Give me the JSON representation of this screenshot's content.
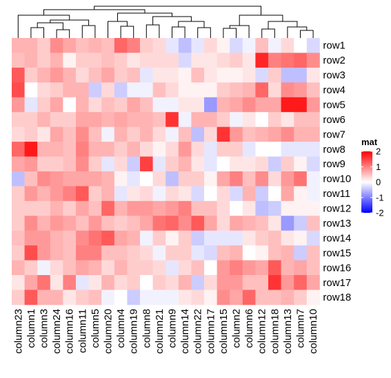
{
  "chart_data": {
    "type": "heatmap",
    "title": "",
    "rows": [
      "row1",
      "row2",
      "row3",
      "row4",
      "row5",
      "row6",
      "row7",
      "row8",
      "row9",
      "row10",
      "row11",
      "row12",
      "row13",
      "row14",
      "row15",
      "row16",
      "row17",
      "row18"
    ],
    "columns": [
      "column23",
      "column1",
      "column3",
      "column24",
      "column16",
      "column11",
      "column5",
      "column20",
      "column4",
      "column19",
      "column8",
      "column21",
      "column9",
      "column14",
      "column22",
      "column17",
      "column15",
      "column2",
      "column6",
      "column12",
      "column18",
      "column13",
      "column7",
      "column10"
    ],
    "values": [
      [
        0.6,
        0.6,
        0.4,
        0.9,
        0.7,
        0.5,
        0.6,
        0.5,
        1.2,
        1.0,
        0.4,
        0.3,
        -0.2,
        -0.5,
        -0.2,
        0.3,
        0.1,
        -0.3,
        -0.1,
        0.5,
        -0.1,
        0.3,
        0.0,
        -0.3
      ],
      [
        0.5,
        0.6,
        0.4,
        0.6,
        0.1,
        0.4,
        0.4,
        0.5,
        0.4,
        0.2,
        0.3,
        0.3,
        0.3,
        -0.3,
        0.2,
        0.2,
        0.3,
        0.4,
        0.2,
        1.7,
        1.0,
        1.1,
        1.2,
        0.9
      ],
      [
        1.3,
        0.4,
        0.6,
        0.8,
        0.6,
        0.3,
        0.5,
        0.7,
        0.4,
        0.5,
        -0.2,
        0.2,
        0.2,
        0.1,
        0.5,
        0.2,
        0.1,
        0.1,
        0.2,
        -0.3,
        0.4,
        -0.5,
        -0.5,
        0.2
      ],
      [
        1.4,
        0.0,
        0.3,
        0.4,
        0.6,
        0.6,
        -0.4,
        0.3,
        -0.4,
        -0.1,
        -0.1,
        0.5,
        0.3,
        0.1,
        0.1,
        0.1,
        0.4,
        0.5,
        0.6,
        1.2,
        0.3,
        0.9,
        0.8,
        0.5
      ],
      [
        0.8,
        -0.2,
        0.4,
        0.7,
        0.0,
        0.6,
        0.3,
        0.5,
        0.4,
        0.7,
        0.5,
        -0.1,
        -0.1,
        0.2,
        0.2,
        -0.8,
        0.6,
        0.7,
        0.9,
        0.7,
        0.7,
        1.8,
        1.8,
        0.8
      ],
      [
        0.4,
        0.4,
        0.6,
        0.4,
        0.4,
        0.7,
        0.7,
        0.6,
        0.7,
        0.6,
        0.6,
        0.5,
        1.6,
        -0.1,
        0.6,
        0.6,
        0.4,
        -0.1,
        0.2,
        0.0,
        0.4,
        0.2,
        0.5,
        0.5
      ],
      [
        0.3,
        0.4,
        0.2,
        0.7,
        0.5,
        0.9,
        0.5,
        -0.1,
        0.6,
        0.4,
        0.6,
        0.3,
        -0.1,
        0.5,
        -0.5,
        0.3,
        1.6,
        0.8,
        0.5,
        0.6,
        0.7,
        0.9,
        0.6,
        0.6
      ],
      [
        1.2,
        1.8,
        0.6,
        0.6,
        0.5,
        1.0,
        0.6,
        0.6,
        0.4,
        0.6,
        0.3,
        0.1,
        0.3,
        0.8,
        0.3,
        -0.2,
        0.4,
        0.4,
        -0.2,
        0.0,
        0.0,
        -0.2,
        -0.2,
        -0.2
      ],
      [
        0.7,
        0.8,
        0.4,
        0.4,
        0.5,
        0.9,
        0.4,
        -0.2,
        0.3,
        -0.4,
        1.5,
        -0.2,
        0.4,
        0.6,
        0.2,
        -0.2,
        0.0,
        0.2,
        0.2,
        0.3,
        -0.4,
        0.4,
        0.1,
        -0.3
      ],
      [
        -0.5,
        0.5,
        0.9,
        0.8,
        0.7,
        0.7,
        0.7,
        0.6,
        0.1,
        -0.2,
        0.0,
        0.3,
        -0.5,
        0.4,
        0.4,
        0.1,
        0.7,
        1.0,
        0.5,
        0.9,
        0.3,
        0.8,
        1.1,
        -0.1
      ],
      [
        0.4,
        0.8,
        0.6,
        0.8,
        1.0,
        1.3,
        0.4,
        0.6,
        -0.2,
        0.2,
        0.3,
        -0.1,
        0.3,
        0.2,
        -0.3,
        0.0,
        0.3,
        -0.3,
        0.6,
        -0.4,
        0.0,
        0.7,
        0.1,
        -0.1
      ],
      [
        0.4,
        0.4,
        0.4,
        0.6,
        0.4,
        0.7,
        0.5,
        1.2,
        0.6,
        0.8,
        0.8,
        0.7,
        0.8,
        1.0,
        0.5,
        0.5,
        0.3,
        0.0,
        0.2,
        -0.5,
        -0.4,
        0.1,
        0.1,
        0.1
      ],
      [
        0.4,
        0.9,
        0.6,
        0.8,
        0.7,
        0.5,
        0.8,
        0.5,
        0.4,
        0.5,
        0.7,
        1.1,
        1.2,
        0.9,
        1.3,
        0.7,
        0.3,
        0.7,
        0.6,
        0.5,
        0.2,
        -0.8,
        -0.4,
        0.5
      ],
      [
        0.5,
        0.8,
        0.8,
        0.6,
        0.5,
        0.9,
        1.1,
        1.3,
        0.7,
        0.6,
        -0.1,
        0.4,
        0.1,
        0.4,
        -0.4,
        -0.2,
        -0.2,
        -0.2,
        0.2,
        0.4,
        0.5,
        0.2,
        0.1,
        -0.3
      ],
      [
        0.4,
        1.4,
        0.8,
        0.6,
        0.5,
        1.0,
        1.0,
        0.5,
        0.5,
        0.4,
        0.3,
        -0.1,
        0.4,
        0.4,
        -0.2,
        -0.3,
        0.5,
        0.6,
        0.0,
        0.1,
        0.5,
        0.6,
        -0.4,
        0.5
      ],
      [
        0.6,
        0.4,
        -0.1,
        0.3,
        0.5,
        0.7,
        0.6,
        0.3,
        0.6,
        0.4,
        0.4,
        0.3,
        -0.2,
        0.3,
        0.5,
        0.0,
        0.8,
        1.0,
        0.8,
        0.7,
        1.3,
        0.6,
        0.7,
        0.5
      ],
      [
        0.2,
        0.7,
        1.1,
        0.2,
        1.0,
        -0.2,
        0.2,
        0.6,
        0.3,
        0.4,
        0.0,
        0.4,
        0.3,
        0.6,
        -0.4,
        0.3,
        0.8,
        0.8,
        0.5,
        0.5,
        1.6,
        0.8,
        1.2,
        0.7
      ],
      [
        0.4,
        1.3,
        0.6,
        0.6,
        0.2,
        0.4,
        0.5,
        -0.1,
        0.0,
        -0.4,
        -0.1,
        -0.1,
        -0.1,
        0.2,
        0.3,
        0.1,
        0.9,
        0.7,
        1.2,
        0.5,
        0.5,
        0.6,
        0.4,
        0.1
      ]
    ],
    "legend": {
      "title": "mat",
      "placement": "right",
      "ticks": [
        2,
        1,
        0,
        -1,
        -2
      ],
      "tick_labels": [
        "2",
        "1",
        "0",
        "-1",
        "-2"
      ],
      "range": [
        -2,
        2
      ],
      "colors": {
        "low": "#0000ff",
        "mid": "#ffffff",
        "high": "#ff0000"
      }
    },
    "column_dendrogram": true,
    "row_dendrogram": false,
    "grid": false
  }
}
